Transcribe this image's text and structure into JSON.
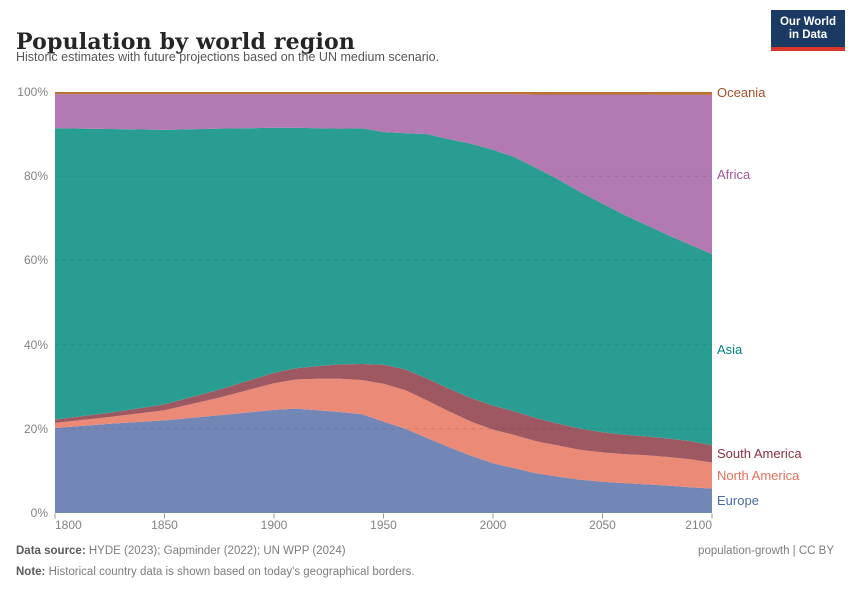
{
  "header": {
    "title": "Population by world region",
    "subtitle": "Historic estimates with future projections based on the UN medium scenario.",
    "logo": {
      "line1": "Our World",
      "line2": "in Data",
      "bg_color": "#1a3a63",
      "accent_color": "#dc352a"
    }
  },
  "chart_data": {
    "type": "area",
    "stacked": true,
    "normalized_to_100": true,
    "unit": "%",
    "title": "Population by world region",
    "xlabel": "",
    "ylabel": "",
    "x_range": [
      1800,
      2100
    ],
    "ylim": [
      0,
      100
    ],
    "xticks": [
      1800,
      1850,
      1900,
      1950,
      2000,
      2050,
      2100
    ],
    "yticks": [
      0,
      20,
      40,
      60,
      80,
      100
    ],
    "ytick_suffix": "%",
    "grid": "dashed-horizontal",
    "legend_position": "right-inline",
    "stack_order": "bottom-to-top",
    "x": [
      1800,
      1825,
      1850,
      1875,
      1900,
      1910,
      1920,
      1930,
      1940,
      1950,
      1960,
      1970,
      1980,
      1990,
      2000,
      2010,
      2020,
      2030,
      2040,
      2050,
      2060,
      2070,
      2080,
      2090,
      2100
    ],
    "series": [
      {
        "name": "Europe",
        "fill": "#7287b6",
        "label_color": "#4c6a9c",
        "values": [
          20.2,
          21.2,
          22.0,
          23.2,
          24.5,
          24.8,
          24.4,
          24.0,
          23.5,
          21.7,
          20.0,
          17.8,
          15.6,
          13.6,
          11.8,
          10.6,
          9.4,
          8.6,
          7.9,
          7.4,
          7.1,
          6.8,
          6.5,
          6.1,
          5.8
        ]
      },
      {
        "name": "North America",
        "fill": "#eb8a76",
        "label_color": "#e56e5a",
        "values": [
          1.2,
          1.6,
          2.4,
          4.2,
          6.3,
          6.9,
          7.5,
          7.9,
          8.1,
          9.0,
          9.2,
          8.9,
          8.5,
          8.1,
          8.0,
          7.9,
          7.6,
          7.4,
          7.1,
          7.0,
          6.9,
          6.9,
          6.8,
          6.7,
          6.2
        ]
      },
      {
        "name": "South America",
        "fill": "#9e5862",
        "label_color": "#8b2f3f",
        "values": [
          0.8,
          1.0,
          1.4,
          1.9,
          2.5,
          2.7,
          3.0,
          3.4,
          3.8,
          4.5,
          4.9,
          5.2,
          5.4,
          5.6,
          5.7,
          5.6,
          5.5,
          5.2,
          5.0,
          4.8,
          4.6,
          4.5,
          4.4,
          4.3,
          4.1
        ]
      },
      {
        "name": "Asia",
        "fill": "#2a9d92",
        "label_color": "#00847e",
        "values": [
          69.2,
          67.4,
          65.2,
          62.0,
          58.2,
          57.1,
          56.5,
          56.0,
          56.0,
          55.3,
          56.1,
          58.1,
          59.3,
          60.4,
          60.8,
          60.4,
          59.4,
          58.0,
          56.2,
          54.3,
          52.2,
          50.2,
          48.3,
          46.7,
          45.4
        ]
      },
      {
        "name": "Africa",
        "fill": "#b279b2",
        "label_color": "#a2559c",
        "values": [
          8.1,
          8.3,
          8.5,
          8.2,
          8.0,
          8.0,
          8.1,
          8.2,
          8.1,
          9.0,
          9.3,
          9.5,
          10.7,
          11.8,
          13.2,
          15.0,
          17.5,
          20.2,
          23.2,
          25.9,
          28.6,
          31.0,
          33.3,
          35.6,
          37.8
        ]
      },
      {
        "name": "Oceania",
        "fill": "#b8732e",
        "label_color": "#9f5129",
        "values": [
          0.5,
          0.5,
          0.5,
          0.5,
          0.5,
          0.5,
          0.5,
          0.5,
          0.5,
          0.5,
          0.5,
          0.5,
          0.5,
          0.5,
          0.5,
          0.5,
          0.6,
          0.6,
          0.6,
          0.6,
          0.6,
          0.6,
          0.7,
          0.7,
          0.7
        ]
      }
    ]
  },
  "footer": {
    "datasource_label": "Data source:",
    "datasource_text": " HYDE (2023); Gapminder (2022); UN WPP (2024)",
    "permalink": "population-growth | CC BY",
    "note_label": "Note:",
    "note_text": " Historical country data is shown based on today's geographical borders."
  }
}
